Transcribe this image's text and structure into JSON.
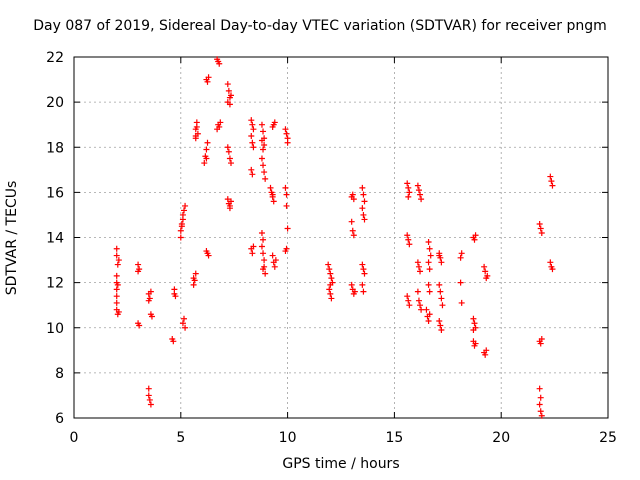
{
  "chart_data": {
    "type": "scatter",
    "title": "Day 087 of 2019, Sidereal Day-to-day VTEC variation (SDTVAR) for receiver pngm",
    "xlabel": "GPS time / hours",
    "ylabel": "SDTVAR / TECUs",
    "xlim": [
      0,
      25
    ],
    "ylim": [
      6,
      22
    ],
    "xticks": [
      0,
      5,
      10,
      15,
      20,
      25
    ],
    "yticks": [
      6,
      8,
      10,
      12,
      14,
      16,
      18,
      20,
      22
    ],
    "grid": true,
    "marker": "+",
    "marker_color": "#ff0000",
    "series": [
      {
        "name": "SDTVAR",
        "points": [
          [
            2.0,
            13.5
          ],
          [
            2.0,
            13.2
          ],
          [
            2.05,
            12.8
          ],
          [
            2.0,
            12.3
          ],
          [
            2.0,
            12.0
          ],
          [
            2.0,
            11.7
          ],
          [
            2.0,
            11.4
          ],
          [
            2.0,
            11.1
          ],
          [
            2.0,
            10.8
          ],
          [
            2.05,
            10.6
          ],
          [
            2.1,
            10.7
          ],
          [
            2.1,
            13.0
          ],
          [
            2.05,
            11.9
          ],
          [
            3.0,
            12.8
          ],
          [
            3.0,
            12.5
          ],
          [
            3.05,
            12.6
          ],
          [
            3.0,
            10.2
          ],
          [
            3.05,
            10.1
          ],
          [
            3.5,
            7.3
          ],
          [
            3.5,
            7.0
          ],
          [
            3.55,
            6.8
          ],
          [
            3.6,
            6.6
          ],
          [
            3.6,
            10.6
          ],
          [
            3.65,
            10.5
          ],
          [
            3.5,
            11.5
          ],
          [
            3.55,
            11.3
          ],
          [
            3.6,
            11.6
          ],
          [
            3.5,
            11.2
          ],
          [
            4.6,
            9.5
          ],
          [
            4.65,
            9.4
          ],
          [
            4.7,
            11.7
          ],
          [
            4.75,
            11.4
          ],
          [
            4.7,
            11.5
          ],
          [
            5.0,
            14.0
          ],
          [
            5.0,
            14.3
          ],
          [
            5.05,
            14.6
          ],
          [
            5.1,
            14.8
          ],
          [
            5.1,
            15.0
          ],
          [
            5.15,
            15.2
          ],
          [
            5.2,
            15.4
          ],
          [
            5.05,
            14.5
          ],
          [
            5.1,
            10.2
          ],
          [
            5.15,
            10.4
          ],
          [
            5.2,
            10.0
          ],
          [
            5.6,
            11.9
          ],
          [
            5.65,
            12.1
          ],
          [
            5.7,
            12.4
          ],
          [
            5.6,
            12.2
          ],
          [
            5.7,
            18.5
          ],
          [
            5.7,
            18.8
          ],
          [
            5.75,
            19.1
          ],
          [
            5.8,
            18.6
          ],
          [
            5.75,
            18.9
          ],
          [
            5.7,
            18.4
          ],
          [
            6.1,
            17.3
          ],
          [
            6.15,
            17.6
          ],
          [
            6.2,
            17.9
          ],
          [
            6.25,
            18.2
          ],
          [
            6.2,
            17.5
          ],
          [
            6.2,
            21.0
          ],
          [
            6.3,
            21.1
          ],
          [
            6.25,
            20.9
          ],
          [
            6.2,
            13.4
          ],
          [
            6.25,
            13.3
          ],
          [
            6.3,
            13.2
          ],
          [
            6.7,
            18.8
          ],
          [
            6.75,
            19.0
          ],
          [
            6.8,
            18.9
          ],
          [
            6.85,
            19.1
          ],
          [
            6.7,
            21.9
          ],
          [
            6.75,
            21.8
          ],
          [
            6.8,
            21.7
          ],
          [
            7.2,
            20.8
          ],
          [
            7.25,
            20.5
          ],
          [
            7.3,
            20.2
          ],
          [
            7.3,
            19.9
          ],
          [
            7.2,
            20.0
          ],
          [
            7.35,
            20.3
          ],
          [
            7.2,
            18.0
          ],
          [
            7.25,
            17.8
          ],
          [
            7.3,
            17.5
          ],
          [
            7.35,
            17.3
          ],
          [
            7.2,
            15.7
          ],
          [
            7.25,
            15.5
          ],
          [
            7.3,
            15.3
          ],
          [
            7.35,
            15.6
          ],
          [
            7.3,
            15.4
          ],
          [
            8.3,
            19.2
          ],
          [
            8.35,
            19.0
          ],
          [
            8.4,
            18.8
          ],
          [
            8.3,
            18.5
          ],
          [
            8.35,
            18.2
          ],
          [
            8.4,
            18.0
          ],
          [
            8.3,
            17.0
          ],
          [
            8.35,
            16.8
          ],
          [
            8.3,
            13.5
          ],
          [
            8.35,
            13.3
          ],
          [
            8.4,
            13.6
          ],
          [
            8.8,
            19.0
          ],
          [
            8.85,
            18.7
          ],
          [
            8.9,
            18.4
          ],
          [
            8.9,
            18.1
          ],
          [
            8.85,
            17.9
          ],
          [
            8.8,
            18.3
          ],
          [
            8.8,
            17.5
          ],
          [
            8.85,
            17.2
          ],
          [
            8.9,
            16.9
          ],
          [
            8.95,
            16.6
          ],
          [
            8.8,
            14.2
          ],
          [
            8.85,
            13.9
          ],
          [
            8.8,
            13.6
          ],
          [
            8.85,
            13.3
          ],
          [
            8.9,
            13.0
          ],
          [
            8.9,
            12.7
          ],
          [
            8.95,
            12.4
          ],
          [
            8.85,
            12.6
          ],
          [
            9.2,
            16.2
          ],
          [
            9.25,
            16.0
          ],
          [
            9.3,
            15.8
          ],
          [
            9.35,
            15.6
          ],
          [
            9.3,
            15.9
          ],
          [
            9.3,
            13.2
          ],
          [
            9.35,
            12.9
          ],
          [
            9.4,
            12.7
          ],
          [
            9.45,
            13.0
          ],
          [
            9.3,
            18.9
          ],
          [
            9.35,
            19.0
          ],
          [
            9.4,
            19.1
          ],
          [
            9.9,
            18.8
          ],
          [
            9.95,
            18.6
          ],
          [
            10.0,
            18.4
          ],
          [
            10.0,
            18.2
          ],
          [
            9.9,
            16.2
          ],
          [
            9.95,
            15.9
          ],
          [
            9.95,
            15.4
          ],
          [
            10.0,
            14.4
          ],
          [
            9.9,
            13.4
          ],
          [
            9.95,
            13.5
          ],
          [
            11.9,
            12.8
          ],
          [
            11.95,
            12.6
          ],
          [
            12.0,
            12.4
          ],
          [
            12.05,
            12.2
          ],
          [
            12.0,
            11.9
          ],
          [
            11.95,
            11.7
          ],
          [
            12.0,
            11.5
          ],
          [
            12.05,
            11.3
          ],
          [
            12.1,
            12.0
          ],
          [
            13.0,
            15.8
          ],
          [
            13.05,
            15.9
          ],
          [
            13.1,
            15.7
          ],
          [
            13.0,
            14.7
          ],
          [
            13.05,
            14.3
          ],
          [
            13.1,
            14.1
          ],
          [
            13.0,
            11.9
          ],
          [
            13.05,
            11.7
          ],
          [
            13.1,
            11.5
          ],
          [
            13.15,
            11.6
          ],
          [
            13.5,
            16.2
          ],
          [
            13.55,
            15.9
          ],
          [
            13.6,
            15.6
          ],
          [
            13.5,
            15.3
          ],
          [
            13.55,
            15.0
          ],
          [
            13.6,
            14.8
          ],
          [
            13.5,
            12.8
          ],
          [
            13.55,
            12.6
          ],
          [
            13.6,
            12.4
          ],
          [
            13.5,
            11.9
          ],
          [
            13.55,
            11.6
          ],
          [
            15.6,
            16.4
          ],
          [
            15.65,
            16.2
          ],
          [
            15.7,
            16.0
          ],
          [
            15.65,
            15.8
          ],
          [
            15.6,
            14.1
          ],
          [
            15.65,
            13.9
          ],
          [
            15.7,
            13.7
          ],
          [
            15.6,
            11.4
          ],
          [
            15.65,
            11.2
          ],
          [
            15.7,
            11.0
          ],
          [
            16.1,
            16.3
          ],
          [
            16.15,
            16.1
          ],
          [
            16.2,
            15.9
          ],
          [
            16.25,
            15.7
          ],
          [
            16.1,
            12.9
          ],
          [
            16.15,
            12.7
          ],
          [
            16.2,
            12.5
          ],
          [
            16.1,
            11.6
          ],
          [
            16.15,
            11.2
          ],
          [
            16.2,
            11.0
          ],
          [
            16.25,
            10.8
          ],
          [
            16.6,
            13.8
          ],
          [
            16.65,
            13.5
          ],
          [
            16.7,
            13.2
          ],
          [
            16.6,
            12.9
          ],
          [
            16.65,
            12.6
          ],
          [
            16.6,
            11.9
          ],
          [
            16.65,
            11.6
          ],
          [
            16.5,
            10.8
          ],
          [
            16.55,
            10.5
          ],
          [
            16.6,
            10.3
          ],
          [
            16.65,
            10.6
          ],
          [
            17.1,
            13.3
          ],
          [
            17.15,
            13.1
          ],
          [
            17.2,
            12.9
          ],
          [
            17.1,
            11.9
          ],
          [
            17.15,
            11.6
          ],
          [
            17.2,
            11.3
          ],
          [
            17.25,
            11.0
          ],
          [
            17.1,
            10.3
          ],
          [
            17.15,
            10.1
          ],
          [
            17.2,
            9.9
          ],
          [
            17.1,
            13.2
          ],
          [
            18.1,
            13.1
          ],
          [
            18.15,
            13.3
          ],
          [
            18.1,
            12.0
          ],
          [
            18.15,
            11.1
          ],
          [
            18.7,
            14.0
          ],
          [
            18.75,
            13.9
          ],
          [
            18.8,
            14.1
          ],
          [
            18.7,
            10.4
          ],
          [
            18.75,
            10.2
          ],
          [
            18.8,
            10.0
          ],
          [
            18.7,
            9.9
          ],
          [
            18.7,
            9.4
          ],
          [
            18.75,
            9.2
          ],
          [
            18.8,
            9.3
          ],
          [
            19.2,
            12.7
          ],
          [
            19.25,
            12.5
          ],
          [
            19.3,
            12.2
          ],
          [
            19.35,
            12.3
          ],
          [
            19.2,
            8.9
          ],
          [
            19.25,
            8.8
          ],
          [
            19.3,
            9.0
          ],
          [
            21.8,
            14.6
          ],
          [
            21.85,
            14.4
          ],
          [
            21.9,
            14.2
          ],
          [
            21.8,
            9.4
          ],
          [
            21.85,
            9.3
          ],
          [
            21.9,
            9.5
          ],
          [
            21.8,
            7.3
          ],
          [
            21.85,
            6.9
          ],
          [
            21.8,
            6.6
          ],
          [
            21.85,
            6.3
          ],
          [
            21.9,
            6.1
          ],
          [
            22.3,
            16.7
          ],
          [
            22.35,
            16.5
          ],
          [
            22.4,
            16.3
          ],
          [
            22.3,
            12.9
          ],
          [
            22.35,
            12.7
          ],
          [
            22.4,
            12.6
          ]
        ]
      }
    ]
  }
}
